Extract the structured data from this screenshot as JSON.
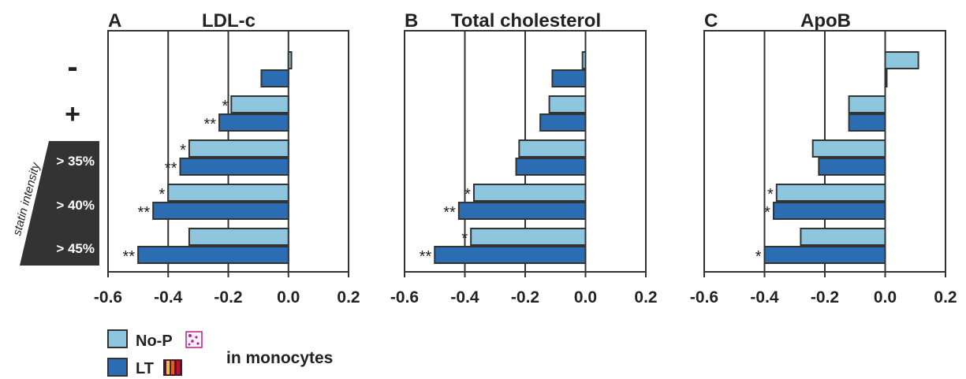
{
  "colors": {
    "nop": "#8ec6e0",
    "lt": "#2b6cb2",
    "axis": "#333333",
    "dark": "#333333",
    "star": "#222222"
  },
  "rows": {
    "minus": "-",
    "plus": "+",
    "r35": "> 35%",
    "r40": "> 40%",
    "r45": "> 45%"
  },
  "statin_label": "statin intensity",
  "legend": {
    "nop": "No-P",
    "lt": "LT",
    "suffix": "in monocytes",
    "nop_icon": "purple-dotted-square-icon",
    "lt_icon": "striped-bars-icon"
  },
  "chart_data": [
    {
      "type": "bar",
      "panel": "A",
      "title": "LDL-c",
      "categories": [
        "-",
        "+",
        "> 35%",
        "> 40%",
        "> 45%"
      ],
      "series": [
        {
          "name": "No-P",
          "values": [
            0.01,
            -0.19,
            -0.33,
            -0.4,
            -0.33
          ],
          "stars": [
            "",
            "*",
            "*",
            "*",
            ""
          ]
        },
        {
          "name": "LT",
          "values": [
            -0.09,
            -0.23,
            -0.36,
            -0.45,
            -0.5
          ],
          "stars": [
            "",
            "**",
            "**",
            "**",
            "**"
          ]
        }
      ],
      "xlim": [
        -0.6,
        0.2
      ],
      "xticks": [
        "-0.6",
        "-0.4",
        "-0.2",
        "0.0",
        "0.2"
      ],
      "grid": true
    },
    {
      "type": "bar",
      "panel": "B",
      "title": "Total cholesterol",
      "categories": [
        "-",
        "+",
        "> 35%",
        "> 40%",
        "> 45%"
      ],
      "series": [
        {
          "name": "No-P",
          "values": [
            -0.01,
            -0.12,
            -0.22,
            -0.37,
            -0.38
          ],
          "stars": [
            "",
            "",
            "",
            "*",
            "*"
          ]
        },
        {
          "name": "LT",
          "values": [
            -0.11,
            -0.15,
            -0.23,
            -0.42,
            -0.5
          ],
          "stars": [
            "",
            "",
            "",
            "**",
            "**"
          ]
        }
      ],
      "xlim": [
        -0.6,
        0.2
      ],
      "xticks": [
        "-0.6",
        "-0.4",
        "-0.2",
        "0.0",
        "0.2"
      ],
      "grid": true
    },
    {
      "type": "bar",
      "panel": "C",
      "title": "ApoB",
      "categories": [
        "-",
        "+",
        "> 35%",
        "> 40%",
        "> 45%"
      ],
      "series": [
        {
          "name": "No-P",
          "values": [
            0.11,
            -0.12,
            -0.24,
            -0.36,
            -0.28
          ],
          "stars": [
            "",
            "",
            "",
            "*",
            ""
          ]
        },
        {
          "name": "LT",
          "values": [
            0.005,
            -0.12,
            -0.22,
            -0.37,
            -0.4
          ],
          "stars": [
            "",
            "",
            "",
            "*",
            "*"
          ]
        }
      ],
      "xlim": [
        -0.6,
        0.2
      ],
      "xticks": [
        "-0.6",
        "-0.4",
        "-0.2",
        "0.0",
        "0.2"
      ],
      "grid": true
    }
  ]
}
